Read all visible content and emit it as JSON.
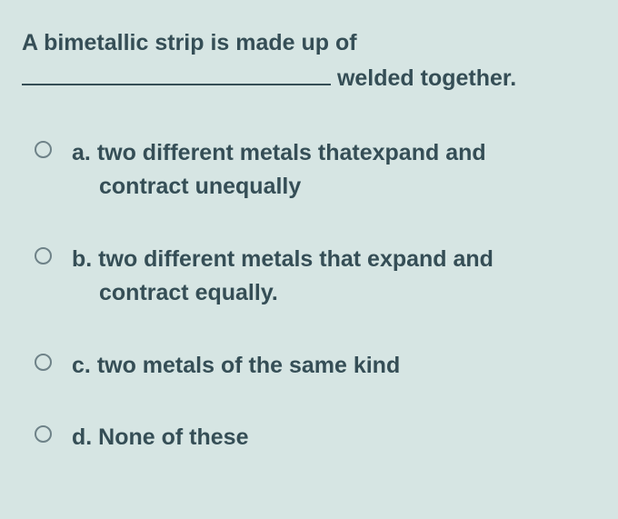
{
  "background_color": "#d6e5e3",
  "text_color": "#354e56",
  "radio_border_color": "#6e8288",
  "font_size_pt": 19,
  "question": {
    "line1": "A bimetallic strip is made up of",
    "line2_after_blank": " welded together."
  },
  "options": [
    {
      "letter": "a.",
      "line1": "two different metals thatexpand and",
      "line2": "contract unequally",
      "selected": false
    },
    {
      "letter": "b.",
      "line1": "two different metals that expand and",
      "line2": "contract equally.",
      "selected": false
    },
    {
      "letter": "c.",
      "line1": "two metals of the same kind",
      "line2": "",
      "selected": false
    },
    {
      "letter": "d.",
      "line1": "None of these",
      "line2": "",
      "selected": false
    }
  ]
}
